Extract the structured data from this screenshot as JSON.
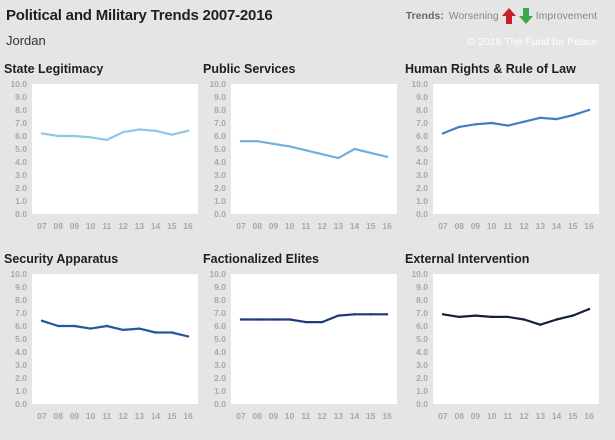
{
  "header": {
    "title": "Political and Military Trends 2007-2016",
    "country": "Jordan",
    "legend_label": "Trends:",
    "legend_worsening": "Worsening",
    "legend_improvement": "Improvement",
    "copyright": "© 2016 The Fund for Peace",
    "worsening_color": "#c8202a",
    "improvement_color": "#3aa84a"
  },
  "chart_data": [
    {
      "type": "line",
      "title": "State Legitimacy",
      "categories": [
        "07",
        "08",
        "09",
        "10",
        "11",
        "12",
        "13",
        "14",
        "15",
        "16"
      ],
      "values": [
        6.2,
        6.0,
        6.0,
        5.9,
        5.7,
        6.3,
        6.5,
        6.4,
        6.1,
        6.4
      ],
      "ylim": [
        0,
        10
      ],
      "yticks": [
        "0.0",
        "1.0",
        "2.0",
        "3.0",
        "4.0",
        "5.0",
        "6.0",
        "7.0",
        "8.0",
        "9.0",
        "10.0"
      ],
      "color": "#8ec8e8"
    },
    {
      "type": "line",
      "title": "Public Services",
      "categories": [
        "07",
        "08",
        "09",
        "10",
        "11",
        "12",
        "13",
        "14",
        "15",
        "16"
      ],
      "values": [
        5.6,
        5.6,
        5.4,
        5.2,
        4.9,
        4.6,
        4.3,
        5.0,
        4.7,
        4.4
      ],
      "ylim": [
        0,
        10
      ],
      "yticks": [
        "0.0",
        "1.0",
        "2.0",
        "3.0",
        "4.0",
        "5.0",
        "6.0",
        "7.0",
        "8.0",
        "9.0",
        "10.0"
      ],
      "color": "#6fb0de"
    },
    {
      "type": "line",
      "title": "Human Rights & Rule of Law",
      "categories": [
        "07",
        "08",
        "09",
        "10",
        "11",
        "12",
        "13",
        "14",
        "15",
        "16"
      ],
      "values": [
        6.2,
        6.7,
        6.9,
        7.0,
        6.8,
        7.1,
        7.4,
        7.3,
        7.6,
        8.0
      ],
      "ylim": [
        0,
        10
      ],
      "yticks": [
        "0.0",
        "1.0",
        "2.0",
        "3.0",
        "4.0",
        "5.0",
        "6.0",
        "7.0",
        "8.0",
        "9.0",
        "10.0"
      ],
      "color": "#3f7fc0"
    },
    {
      "type": "line",
      "title": "Security Apparatus",
      "categories": [
        "07",
        "08",
        "09",
        "10",
        "11",
        "12",
        "13",
        "14",
        "15",
        "16"
      ],
      "values": [
        6.4,
        6.0,
        6.0,
        5.8,
        6.0,
        5.7,
        5.8,
        5.5,
        5.5,
        5.2
      ],
      "ylim": [
        0,
        10
      ],
      "yticks": [
        "0.0",
        "1.0",
        "2.0",
        "3.0",
        "4.0",
        "5.0",
        "6.0",
        "7.0",
        "8.0",
        "9.0",
        "10.0"
      ],
      "color": "#26579a"
    },
    {
      "type": "line",
      "title": "Factionalized Elites",
      "categories": [
        "07",
        "08",
        "09",
        "10",
        "11",
        "12",
        "13",
        "14",
        "15",
        "16"
      ],
      "values": [
        6.5,
        6.5,
        6.5,
        6.5,
        6.3,
        6.3,
        6.8,
        6.9,
        6.9,
        6.9
      ],
      "ylim": [
        0,
        10
      ],
      "yticks": [
        "0.0",
        "1.0",
        "2.0",
        "3.0",
        "4.0",
        "5.0",
        "6.0",
        "7.0",
        "8.0",
        "9.0",
        "10.0"
      ],
      "color": "#1d3a78"
    },
    {
      "type": "line",
      "title": "External Intervention",
      "categories": [
        "07",
        "08",
        "09",
        "10",
        "11",
        "12",
        "13",
        "14",
        "15",
        "16"
      ],
      "values": [
        6.9,
        6.7,
        6.8,
        6.7,
        6.7,
        6.5,
        6.1,
        6.5,
        6.8,
        7.3
      ],
      "ylim": [
        0,
        10
      ],
      "yticks": [
        "0.0",
        "1.0",
        "2.0",
        "3.0",
        "4.0",
        "5.0",
        "6.0",
        "7.0",
        "8.0",
        "9.0",
        "10.0"
      ],
      "color": "#15203d"
    }
  ]
}
